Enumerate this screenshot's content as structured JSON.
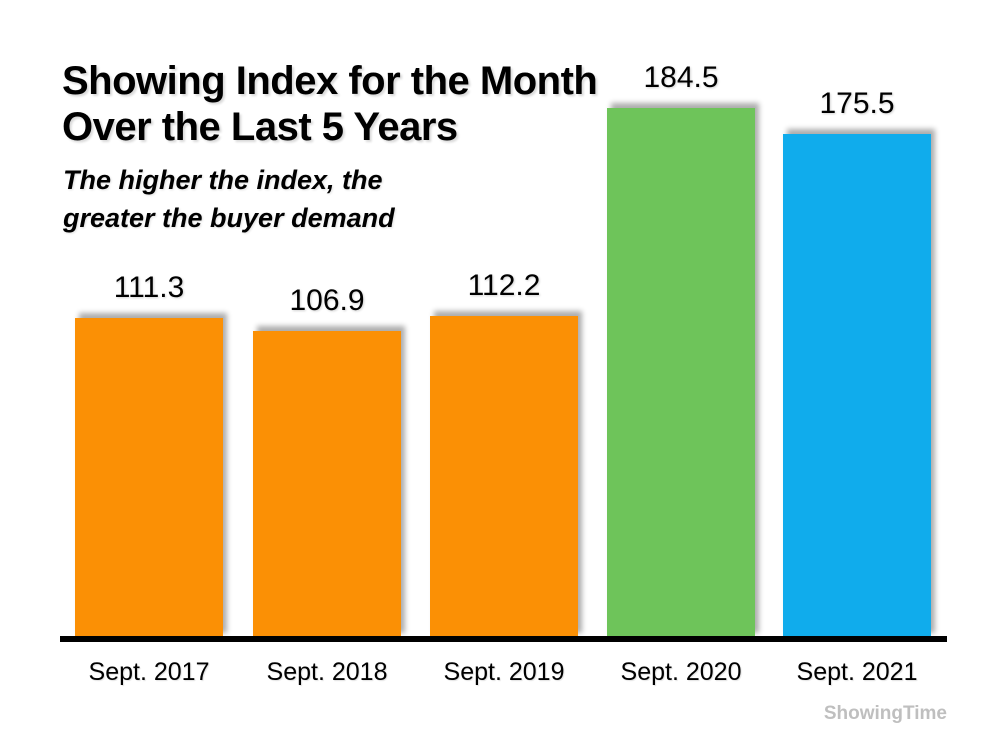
{
  "header": {
    "title": "Showing Index for the Month\nOver the Last 5 Years",
    "subtitle": "The higher the index, the\ngreater the buyer demand"
  },
  "watermark": "ShowingTime",
  "colors": {
    "orange": "#FB9005",
    "green": "#6EC45A",
    "blue": "#10ACEC",
    "axis": "#000000",
    "text": "#000000",
    "watermark_gray": "#BFBFBF",
    "background": "#FFFFFF"
  },
  "chart_data": {
    "type": "bar",
    "title": "Showing Index for the Month Over the Last 5 Years",
    "subtitle": "The higher the index, the greater the buyer demand",
    "categories": [
      "Sept. 2017",
      "Sept. 2018",
      "Sept. 2019",
      "Sept. 2020",
      "Sept. 2021"
    ],
    "values": [
      111.3,
      106.9,
      112.2,
      184.5,
      175.5
    ],
    "value_labels": [
      "111.3",
      "106.9",
      "112.2",
      "184.5",
      "175.5"
    ],
    "bar_colors": [
      "#FB9005",
      "#FB9005",
      "#FB9005",
      "#6EC45A",
      "#10ACEC"
    ],
    "xlabel": "",
    "ylabel": "",
    "ylim": [
      0,
      200
    ],
    "y_axis_visible": false,
    "grid": false,
    "legend": false,
    "value_label_position": "above-bar",
    "baseline_axis": "bottom-black-line"
  }
}
